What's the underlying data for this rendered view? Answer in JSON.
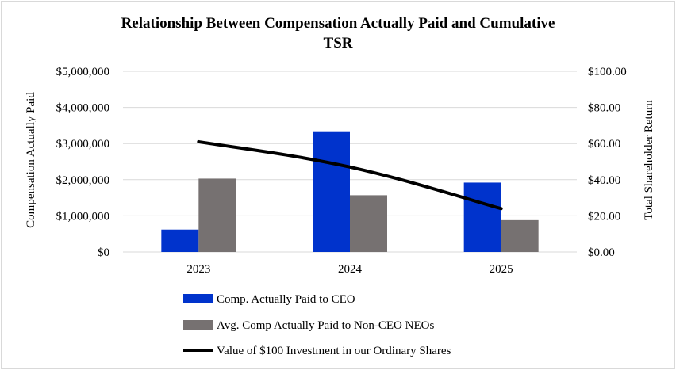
{
  "chart_data": {
    "type": "bar",
    "title_line1": "Relationship Between Compensation Actually Paid and Cumulative",
    "title_line2": "TSR",
    "categories": [
      "2023",
      "2024",
      "2025"
    ],
    "ylabel": "Compensation Actually Paid",
    "y2label": "Total Shareholder Return",
    "ylim": [
      0,
      5000000
    ],
    "y2lim": [
      0,
      100
    ],
    "yticks": [
      "$0",
      "$1,000,000",
      "$2,000,000",
      "$3,000,000",
      "$4,000,000",
      "$5,000,000"
    ],
    "y2ticks": [
      "$0.00",
      "$20.00",
      "$40.00",
      "$60.00",
      "$80.00",
      "$100.00"
    ],
    "grid": true,
    "legend_position": "bottom",
    "series": [
      {
        "name": "Comp. Actually Paid to CEO",
        "kind": "bar",
        "axis": "left",
        "color": "#0033cc",
        "values": [
          620000,
          3340000,
          1920000
        ]
      },
      {
        "name": "Avg. Comp Actually Paid to Non-CEO NEOs",
        "kind": "bar",
        "axis": "left",
        "color": "#767171",
        "values": [
          2030000,
          1570000,
          880000
        ]
      },
      {
        "name": "Value of $100 Investment in our Ordinary Shares",
        "kind": "line",
        "axis": "right",
        "color": "#000000",
        "values": [
          61,
          47,
          24
        ]
      }
    ]
  }
}
